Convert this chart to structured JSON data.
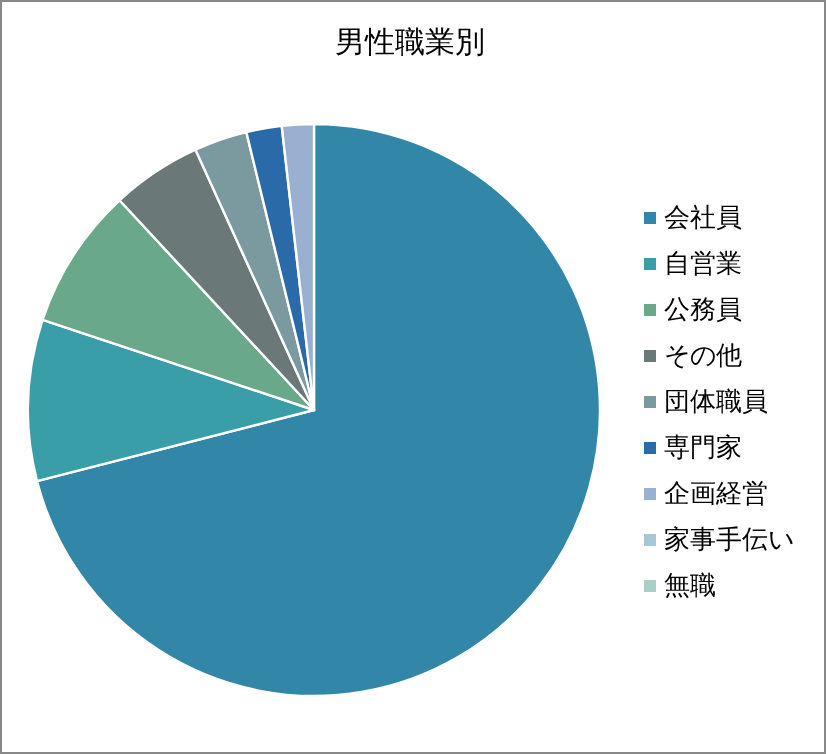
{
  "chart_data": {
    "type": "pie",
    "title": "男性職業別",
    "categories": [
      "会社員",
      "自営業",
      "公務員",
      "その他",
      "団体職員",
      "専門家",
      "企画経営",
      "家事手伝い",
      "無職"
    ],
    "values": [
      71.0,
      9.1,
      8.0,
      5.1,
      3.0,
      2.0,
      1.8,
      null,
      null
    ],
    "colors": [
      "#3286a8",
      "#3a9ea8",
      "#6aa88a",
      "#6b7878",
      "#7a9aa0",
      "#2a6aa8",
      "#9ab0d0",
      "#a8c8d8",
      "#a8d0c8"
    ],
    "legend": "right"
  }
}
